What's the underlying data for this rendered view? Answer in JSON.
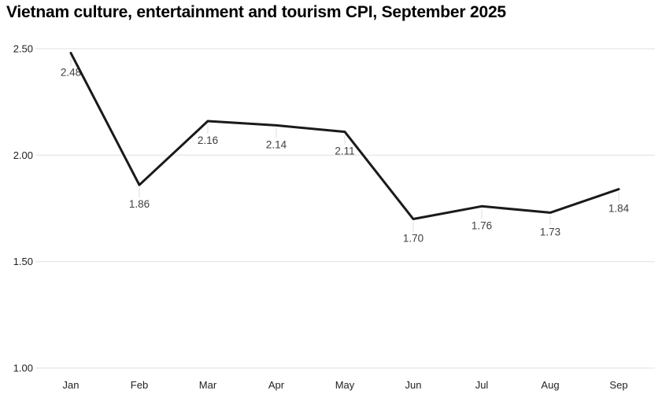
{
  "chart_data": {
    "type": "line",
    "title": "Vietnam culture, entertainment and tourism CPI, September 2025",
    "series_name": "Vietnam culture, entertainment and tourism CPI",
    "categories": [
      "Jan",
      "Feb",
      "Mar",
      "Apr",
      "May",
      "Jun",
      "Jul",
      "Aug",
      "Sep"
    ],
    "values": [
      2.48,
      1.86,
      2.16,
      2.14,
      2.11,
      1.7,
      1.76,
      1.73,
      1.84
    ],
    "point_labels": [
      "2.48",
      "1.86",
      "2.16",
      "2.14",
      "2.11",
      "1.70",
      "1.76",
      "1.73",
      "1.84"
    ],
    "yticks": [
      2.5,
      2.0,
      1.5,
      1.0
    ],
    "ytick_labels": [
      "2.50",
      "2.00",
      "1.50",
      "1.00"
    ],
    "ylim": [
      1.0,
      2.5
    ],
    "xlabel": "",
    "ylabel": "",
    "grid": true,
    "legend": false
  },
  "colors": {
    "line": "#1a1a1a",
    "grid": "#e0e0e0",
    "leader": "#dcdcdc",
    "point_label": "#404040",
    "axis_label": "#222222",
    "title": "#000000",
    "background": "#ffffff"
  }
}
